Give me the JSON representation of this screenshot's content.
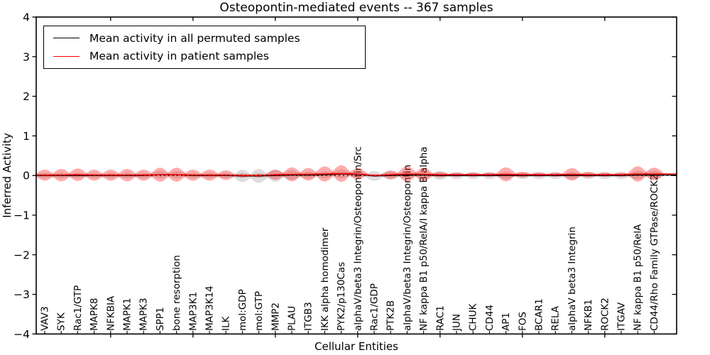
{
  "figure": {
    "title": "Osteopontin-mediated events -- 367 samples",
    "xlabel": "Cellular Entities",
    "ylabel": "Inferred Activity"
  },
  "legend": {
    "entries": [
      {
        "label": "Mean activity in all permuted samples",
        "color": "#000000"
      },
      {
        "label": "Mean activity in patient samples",
        "color": "#ff0000"
      }
    ]
  },
  "chart_data": {
    "type": "violin",
    "title": "Osteopontin-mediated events -- 367 samples",
    "xlabel": "Cellular Entities",
    "ylabel": "Inferred Activity",
    "ylim": [
      -4,
      4
    ],
    "yticks": [
      4,
      3,
      2,
      1,
      0,
      -1,
      -2,
      -3,
      -4
    ],
    "zero_line": 0,
    "grid": false,
    "legend_position": "upper left",
    "categories": [
      "VAV3",
      "SYK",
      "Rac1/GTP",
      "MAPK8",
      "NFKBIA",
      "MAPK1",
      "MAPK3",
      "SPP1",
      "bone resorption",
      "MAP3K1",
      "MAP3K14",
      "ILK",
      "mol:GDP",
      "mol:GTP",
      "MMP2",
      "PLAU",
      "ITGB3",
      "IKK alpha homodimer",
      "PYK2/p130Cas",
      "alphaV/beta3 Integrin/Osteopontin/Src",
      "Rac1/GDP",
      "PTK2B",
      "alphaV/beta3 Integrin/Osteopontin",
      "NF kappa B1 p50/RelA/I kappa B alpha",
      "RAC1",
      "JUN",
      "CHUK",
      "CD44",
      "AP1",
      "FOS",
      "BCAR1",
      "RELA",
      "alphaV beta3 Integrin",
      "NFKB1",
      "ROCK2",
      "ITGAV",
      "NF kappa B1 p50/RelA",
      "CD44/Rho Family GTPase/ROCK2"
    ],
    "series": [
      {
        "name": "Mean activity in all permuted samples",
        "color": "#000000",
        "fill": "rgba(120,120,120,0.25)",
        "means": [
          0,
          0,
          0,
          0,
          0,
          0,
          0,
          0.02,
          0.02,
          0,
          0,
          0,
          -0.01,
          -0.01,
          0,
          0.01,
          0.01,
          0.02,
          0.04,
          0.03,
          -0.01,
          0,
          0.01,
          0.01,
          0,
          0,
          0,
          0,
          0,
          0,
          0,
          0,
          0,
          0,
          0,
          0,
          0.01,
          0.01
        ],
        "violin_halfwidths": [
          0.07,
          0.07,
          0.07,
          0.07,
          0.07,
          0.07,
          0.07,
          0.09,
          0.09,
          0.07,
          0.07,
          0.07,
          0.16,
          0.18,
          0.16,
          0.125,
          0.09,
          0.09,
          0.11,
          0.09,
          0.125,
          0.11,
          0.09,
          0.11,
          0.11,
          0.09,
          0.09,
          0.09,
          0.09,
          0.09,
          0.09,
          0.09,
          0.09,
          0.09,
          0.09,
          0.09,
          0.11,
          0.11
        ]
      },
      {
        "name": "Mean activity in patient samples",
        "color": "#ff0000",
        "fill": "rgba(255,0,0,0.33)",
        "means": [
          0.01,
          0.01,
          0.02,
          0.01,
          0.01,
          0.01,
          0.01,
          0.02,
          0.02,
          0.01,
          0.01,
          0.01,
          0,
          0,
          0.02,
          0.03,
          0.03,
          0.04,
          0.05,
          0.04,
          0,
          0.02,
          0.04,
          0.03,
          0.02,
          0.02,
          0.02,
          0.02,
          0.03,
          0.02,
          0.02,
          0.02,
          0.03,
          0.02,
          0.02,
          0.02,
          0.04,
          0.04
        ],
        "violin_halfwidths": [
          0.143,
          0.161,
          0.161,
          0.143,
          0.143,
          0.161,
          0.143,
          0.18,
          0.18,
          0.143,
          0.143,
          0.125,
          0.054,
          0.054,
          0.125,
          0.18,
          0.161,
          0.197,
          0.215,
          0.143,
          0.036,
          0.107,
          0.197,
          0.161,
          0.072,
          0.054,
          0.054,
          0.054,
          0.18,
          0.072,
          0.054,
          0.054,
          0.161,
          0.072,
          0.054,
          0.054,
          0.197,
          0.161
        ]
      }
    ]
  }
}
